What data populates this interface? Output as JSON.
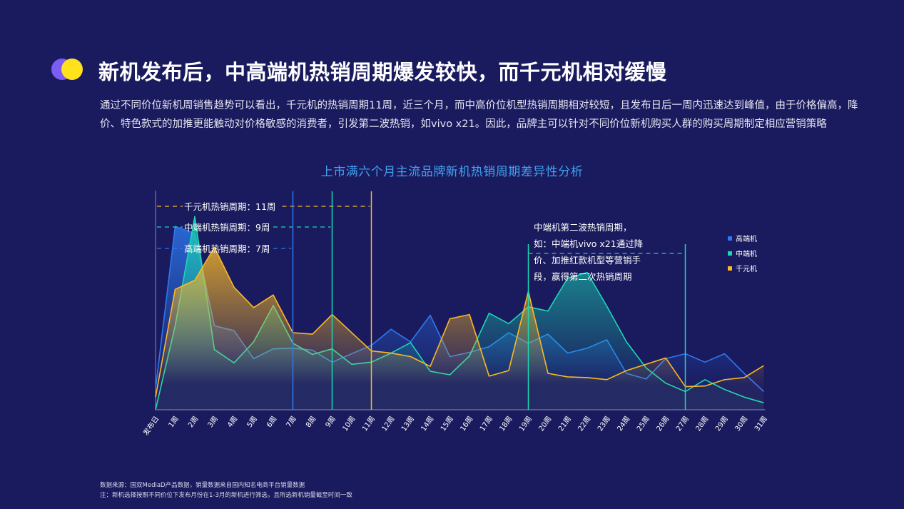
{
  "header": {
    "title": "新机发布后，中高端机热销周期爆发较快，而千元机相对缓慢",
    "description": "通过不同价位新机周销售趋势可以看出，千元机的热销周期11周，近三个月，而中高价位机型热销周期相对较短，且发布日后一周内迅速达到峰值，由于价格偏高，降价、特色款式的加推更能触动对价格敏感的消费者，引发第二波热销，如vivo x21。因此，品牌主可以针对不同价位新机购买人群的购买周期制定相应营销策略"
  },
  "chart_data": {
    "type": "area",
    "title": "上市满六个月主流品牌新机热销周期差异性分析",
    "categories": [
      "发布日",
      "1周",
      "2周",
      "3周",
      "4周",
      "5周",
      "6周",
      "7周",
      "8周",
      "9周",
      "10周",
      "11周",
      "12周",
      "13周",
      "14周",
      "15周",
      "16周",
      "17周",
      "18周",
      "19周",
      "20周",
      "21周",
      "22周",
      "23周",
      "24周",
      "25周",
      "26周",
      "27周",
      "28周",
      "29周",
      "30周",
      "31周"
    ],
    "ylim": [
      0,
      310
    ],
    "series": [
      {
        "name": "高端机",
        "color": "#2d79f0",
        "values": [
          30,
          262,
          252,
          120,
          113,
          73,
          87,
          88,
          85,
          68,
          80,
          92,
          115,
          97,
          135,
          76,
          82,
          90,
          110,
          95,
          108,
          81,
          88,
          100,
          52,
          44,
          73,
          80,
          68,
          80,
          52,
          26
        ]
      },
      {
        "name": "中端机",
        "color": "#1ad8b2",
        "values": [
          0,
          120,
          276,
          86,
          67,
          97,
          149,
          95,
          79,
          87,
          65,
          68,
          81,
          96,
          55,
          50,
          77,
          138,
          123,
          147,
          141,
          188,
          196,
          148,
          97,
          60,
          38,
          26,
          43,
          29,
          18,
          10
        ]
      },
      {
        "name": "千元机",
        "color": "#fbb924",
        "values": [
          18,
          172,
          185,
          232,
          175,
          146,
          164,
          110,
          108,
          136,
          110,
          84,
          81,
          76,
          62,
          130,
          136,
          48,
          56,
          169,
          52,
          47,
          46,
          43,
          56,
          65,
          74,
          33,
          34,
          43,
          46,
          63
        ]
      }
    ],
    "legend": [
      "高端机",
      "中端机",
      "千元机"
    ],
    "legend_position": "right",
    "annotations": [
      {
        "text": "千元机热销周期：11周",
        "color": "#fbb924",
        "from": 0,
        "to": 11
      },
      {
        "text": "中端机热销周期：9周",
        "color": "#1ad8b2",
        "from": 0,
        "to": 9
      },
      {
        "text": "高端机热销周期：7周",
        "color": "#2d79f0",
        "from": 0,
        "to": 7
      },
      {
        "text": "中端机第二波热销周期，如：中端机vivo x21通过降价、加推红款机型等营销手段，赢得第二次热销周期",
        "color": "#1ad8b2",
        "from": 19,
        "to": 27
      }
    ],
    "grid": false
  },
  "callout_lines": [
    "中端机第二波热销周期，",
    "如：中端机vivo x21通过降",
    "价、加推红款机型等营销手",
    "段，赢得第二次热销周期"
  ],
  "footer": {
    "source": "数据来源：国双MediaD产品数据，销量数据来自国内知名电商平台销量数据",
    "note": "注：新机选择按照不同价位下发布月份在1-3月的新机进行筛选，且所选新机销量截至时间一致"
  }
}
